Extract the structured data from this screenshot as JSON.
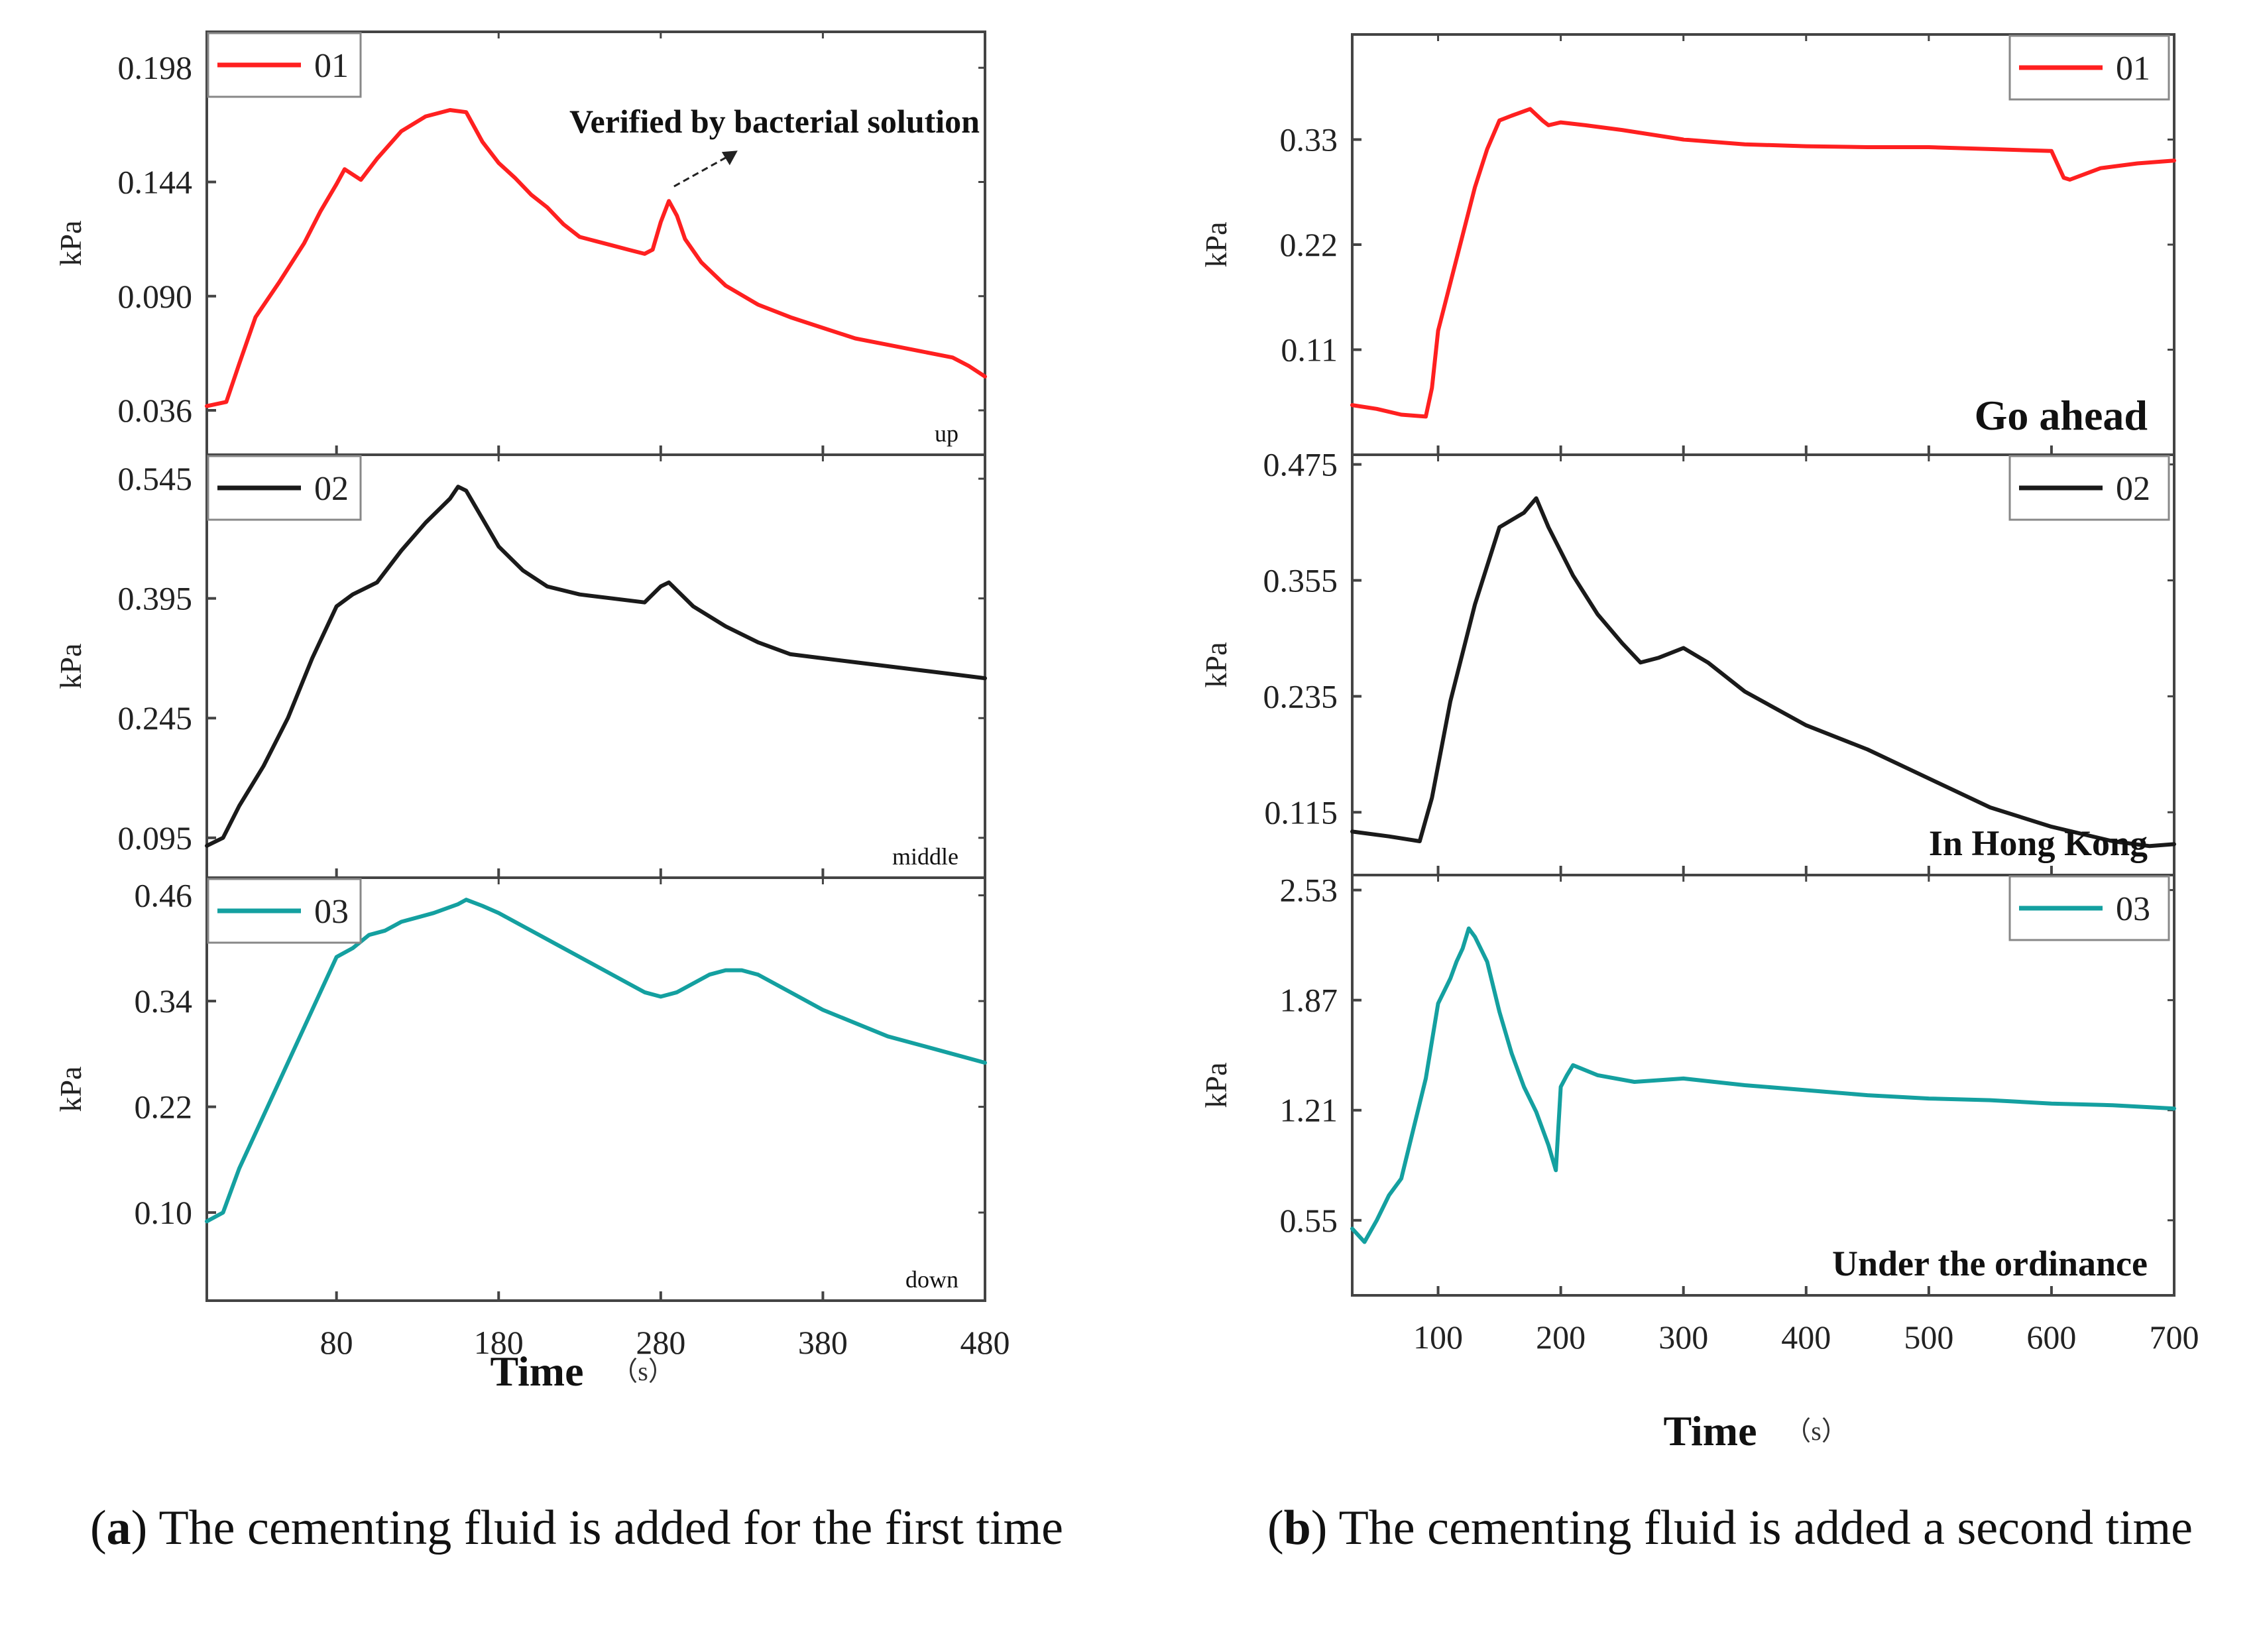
{
  "figure": {
    "caption_a_letter": "a",
    "caption_a_text": "The cementing fluid is added for the first time",
    "caption_b_letter": "b",
    "caption_b_text": "The cementing fluid is added a second time"
  },
  "chart_data": [
    {
      "type": "line",
      "panel": "a",
      "title": "",
      "xlabel": "Time",
      "xunit": "（s）",
      "xlim": [
        0,
        480
      ],
      "xticks": [
        80,
        180,
        280,
        380,
        480
      ],
      "subplots": [
        {
          "ylabel": "kPa",
          "ylim": [
            0.015,
            0.215
          ],
          "yticks": [
            0.198,
            0.144,
            0.09,
            0.036
          ],
          "ytick_labels": [
            "0.198",
            "0.144",
            "0.090",
            "0.036"
          ],
          "legend": "01",
          "color": "#ff2020",
          "corner_label": "up",
          "annotation": "Verified by bacterial solution",
          "x": [
            0,
            12,
            20,
            30,
            45,
            60,
            70,
            80,
            85,
            95,
            105,
            120,
            135,
            150,
            160,
            170,
            180,
            190,
            200,
            210,
            220,
            230,
            240,
            250,
            260,
            270,
            275,
            280,
            285,
            290,
            295,
            305,
            320,
            340,
            360,
            380,
            400,
            420,
            440,
            460,
            470,
            480
          ],
          "y": [
            0.038,
            0.04,
            0.058,
            0.08,
            0.097,
            0.115,
            0.13,
            0.143,
            0.15,
            0.145,
            0.155,
            0.168,
            0.175,
            0.178,
            0.177,
            0.163,
            0.153,
            0.146,
            0.138,
            0.132,
            0.124,
            0.118,
            0.116,
            0.114,
            0.112,
            0.11,
            0.112,
            0.125,
            0.135,
            0.128,
            0.117,
            0.106,
            0.095,
            0.086,
            0.08,
            0.075,
            0.07,
            0.067,
            0.064,
            0.061,
            0.057,
            0.052
          ]
        },
        {
          "ylabel": "kPa",
          "ylim": [
            0.045,
            0.575
          ],
          "yticks": [
            0.545,
            0.395,
            0.245,
            0.095
          ],
          "ytick_labels": [
            "0.545",
            "0.395",
            "0.245",
            "0.095"
          ],
          "legend": "02",
          "color": "#1a1a1a",
          "corner_label": "middle",
          "x": [
            0,
            10,
            20,
            35,
            50,
            65,
            80,
            90,
            105,
            120,
            135,
            150,
            155,
            160,
            170,
            180,
            195,
            210,
            230,
            250,
            270,
            280,
            285,
            290,
            300,
            320,
            340,
            360,
            380,
            400,
            420,
            440,
            460,
            480
          ],
          "y": [
            0.085,
            0.095,
            0.135,
            0.185,
            0.245,
            0.32,
            0.385,
            0.4,
            0.415,
            0.455,
            0.49,
            0.52,
            0.535,
            0.53,
            0.495,
            0.46,
            0.43,
            0.41,
            0.4,
            0.395,
            0.39,
            0.41,
            0.415,
            0.405,
            0.385,
            0.36,
            0.34,
            0.325,
            0.32,
            0.315,
            0.31,
            0.305,
            0.3,
            0.295
          ]
        },
        {
          "ylabel": "kPa",
          "ylim": [
            0.0,
            0.48
          ],
          "yticks": [
            0.46,
            0.34,
            0.22,
            0.1
          ],
          "ytick_labels": [
            "0.46",
            "0.34",
            "0.22",
            "0.10"
          ],
          "legend": "03",
          "color": "#14a0a0",
          "corner_label": "down",
          "x": [
            0,
            10,
            20,
            35,
            50,
            65,
            80,
            90,
            100,
            110,
            120,
            140,
            155,
            160,
            170,
            180,
            190,
            200,
            220,
            240,
            260,
            270,
            280,
            290,
            300,
            310,
            320,
            330,
            340,
            360,
            380,
            400,
            420,
            440,
            460,
            480
          ],
          "y": [
            0.09,
            0.1,
            0.15,
            0.21,
            0.27,
            0.33,
            0.39,
            0.4,
            0.415,
            0.42,
            0.43,
            0.44,
            0.45,
            0.455,
            0.448,
            0.44,
            0.43,
            0.42,
            0.4,
            0.38,
            0.36,
            0.35,
            0.345,
            0.35,
            0.36,
            0.37,
            0.375,
            0.375,
            0.37,
            0.35,
            0.33,
            0.315,
            0.3,
            0.29,
            0.28,
            0.27
          ]
        }
      ]
    },
    {
      "type": "line",
      "panel": "b",
      "title": "",
      "xlabel": "Time",
      "xunit": "（s）",
      "xlim": [
        30,
        700
      ],
      "xticks": [
        100,
        200,
        300,
        400,
        500,
        600,
        700
      ],
      "subplots": [
        {
          "ylabel": "kPa",
          "ylim": [
            0.0,
            0.44
          ],
          "yticks": [
            0.33,
            0.22,
            0.11
          ],
          "ytick_labels": [
            "0.33",
            "0.22",
            "0.11"
          ],
          "legend": "01",
          "color": "#ff2020",
          "corner_label": "Go ahead",
          "x": [
            30,
            50,
            70,
            90,
            95,
            100,
            110,
            120,
            130,
            140,
            150,
            160,
            175,
            185,
            190,
            200,
            220,
            250,
            300,
            350,
            400,
            450,
            500,
            550,
            600,
            610,
            615,
            640,
            670,
            700
          ],
          "y": [
            0.052,
            0.048,
            0.042,
            0.04,
            0.07,
            0.13,
            0.18,
            0.23,
            0.28,
            0.32,
            0.35,
            0.355,
            0.362,
            0.35,
            0.345,
            0.348,
            0.345,
            0.34,
            0.33,
            0.325,
            0.323,
            0.322,
            0.322,
            0.32,
            0.318,
            0.29,
            0.288,
            0.3,
            0.305,
            0.308
          ]
        },
        {
          "ylabel": "kPa",
          "ylim": [
            0.05,
            0.485
          ],
          "yticks": [
            0.475,
            0.355,
            0.235,
            0.115
          ],
          "ytick_labels": [
            "0.475",
            "0.355",
            "0.235",
            "0.115"
          ],
          "legend": "02",
          "color": "#1a1a1a",
          "corner_label": "In Hong Kong",
          "x": [
            30,
            60,
            85,
            95,
            110,
            130,
            150,
            170,
            180,
            190,
            210,
            230,
            250,
            265,
            280,
            300,
            320,
            350,
            400,
            450,
            500,
            550,
            600,
            650,
            680,
            700
          ],
          "y": [
            0.095,
            0.09,
            0.085,
            0.13,
            0.23,
            0.33,
            0.41,
            0.425,
            0.44,
            0.41,
            0.36,
            0.32,
            0.29,
            0.27,
            0.275,
            0.285,
            0.27,
            0.24,
            0.205,
            0.18,
            0.15,
            0.12,
            0.1,
            0.085,
            0.08,
            0.082
          ]
        },
        {
          "ylabel": "kPa",
          "ylim": [
            0.1,
            2.62
          ],
          "yticks": [
            2.53,
            1.87,
            1.21,
            0.55
          ],
          "ytick_labels": [
            "2.53",
            "1.87",
            "1.21",
            "0.55"
          ],
          "legend": "03",
          "color": "#14a0a0",
          "corner_label": "Under the ordinance",
          "x": [
            30,
            40,
            50,
            60,
            70,
            80,
            90,
            100,
            110,
            115,
            120,
            125,
            130,
            140,
            150,
            160,
            170,
            180,
            190,
            196,
            200,
            205,
            210,
            230,
            260,
            300,
            350,
            400,
            450,
            500,
            550,
            600,
            650,
            700
          ],
          "y": [
            0.5,
            0.42,
            0.55,
            0.7,
            0.8,
            1.1,
            1.4,
            1.85,
            2.0,
            2.1,
            2.18,
            2.3,
            2.25,
            2.1,
            1.8,
            1.55,
            1.35,
            1.2,
            1.0,
            0.85,
            1.35,
            1.42,
            1.48,
            1.42,
            1.38,
            1.4,
            1.36,
            1.33,
            1.3,
            1.28,
            1.27,
            1.25,
            1.24,
            1.22
          ]
        }
      ]
    }
  ]
}
